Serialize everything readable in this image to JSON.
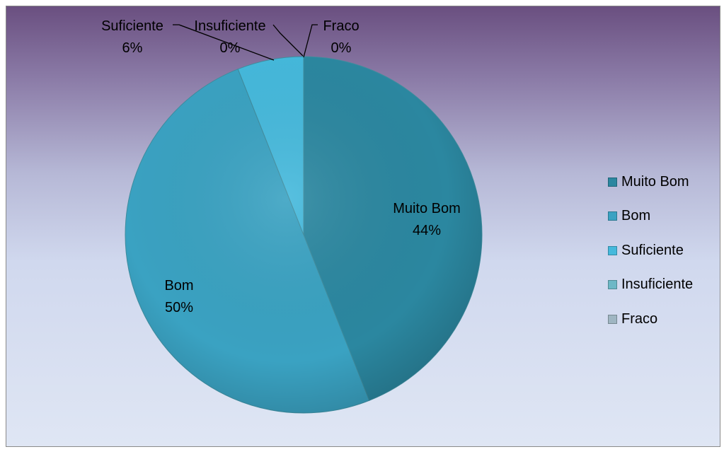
{
  "chart_data": {
    "type": "pie",
    "categories": [
      "Muito Bom",
      "Bom",
      "Suficiente",
      "Insuficiente",
      "Fraco"
    ],
    "values": [
      44,
      50,
      6,
      0,
      0
    ],
    "labels": [
      "44%",
      "50%",
      "6%",
      "0%",
      "0%"
    ],
    "colors": [
      "#2b87a0",
      "#3aa2c2",
      "#45b9dc",
      "#6db8c6",
      "#9fb6c2"
    ],
    "title": "",
    "legend_position": "right"
  }
}
